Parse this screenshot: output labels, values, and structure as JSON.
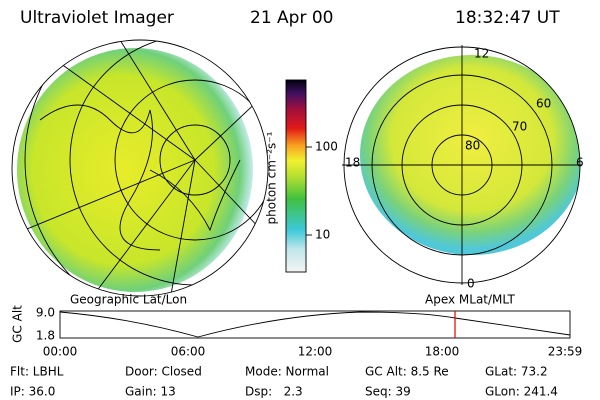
{
  "header": {
    "title": "Ultraviolet Imager",
    "date": "21 Apr 00",
    "time": "18:32:47 UT"
  },
  "colorbar": {
    "label": "photon cm⁻²s⁻¹",
    "ticks": [
      "100",
      "10"
    ]
  },
  "left_panel": {
    "label": "Geographic Lat/Lon"
  },
  "right_panel": {
    "label": "Apex MLat/MLT",
    "mlt_labels": [
      "12",
      "18",
      "6",
      "0"
    ],
    "lat_labels": [
      "80",
      "70",
      "60"
    ]
  },
  "altitude_plot": {
    "ylabel": "GC Alt",
    "yticks": [
      "9.0",
      "1.8"
    ],
    "xticks": [
      "00:00",
      "06:00",
      "12:00",
      "18:00",
      "23:59"
    ]
  },
  "info": {
    "rows": [
      [
        "Flt: LBHL",
        "Door: Closed",
        "Mode: Normal",
        "GC Alt: 8.5 Re",
        "GLat: 73.2"
      ],
      [
        "IP: 36.0",
        "Gain: 13",
        "Dsp:   2.3",
        "Seq: 39",
        "GLon: 241.4"
      ]
    ]
  }
}
